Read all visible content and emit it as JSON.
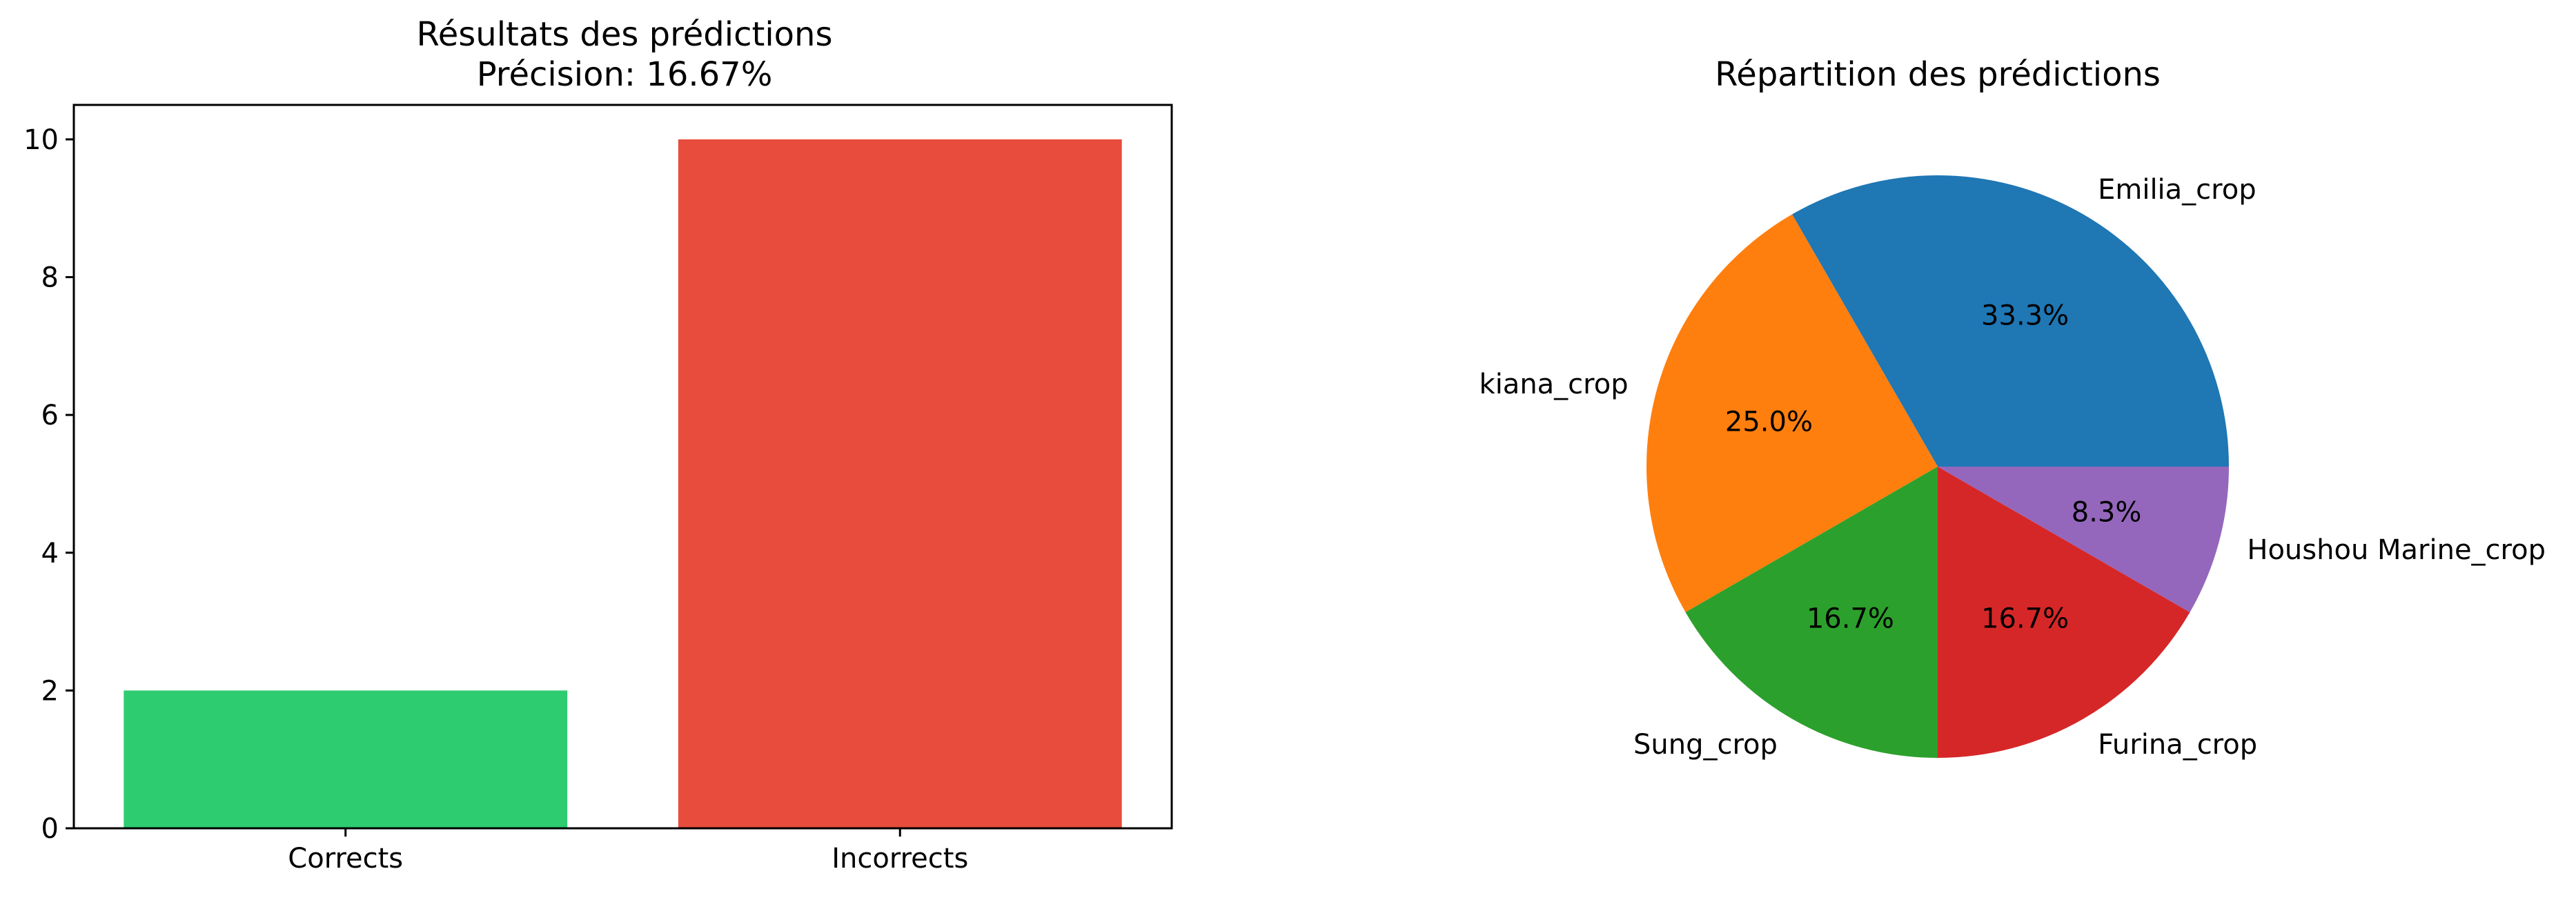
{
  "chart_data": [
    {
      "type": "bar",
      "title": "Résultats des prédictions",
      "subtitle": "Précision: 16.67%",
      "categories": [
        "Corrects",
        "Incorrects"
      ],
      "values": [
        2,
        10
      ],
      "colors": [
        "#2ecc71",
        "#e74c3c"
      ],
      "ylim": [
        0,
        10.5
      ],
      "yticks": [
        0,
        2,
        4,
        6,
        8,
        10
      ],
      "grid": false
    },
    {
      "type": "pie",
      "title": "Répartition des prédictions",
      "labels": [
        "Emilia_crop",
        "kiana_crop",
        "Sung_crop",
        "Furina_crop",
        "Houshou Marine_crop"
      ],
      "values": [
        4,
        3,
        2,
        2,
        1
      ],
      "percent_labels": [
        "33.3%",
        "25.0%",
        "16.7%",
        "16.7%",
        "8.3%"
      ],
      "colors": [
        "#1f77b4",
        "#ff7f0e",
        "#2ca02c",
        "#d62728",
        "#9467bd"
      ],
      "start_angle_deg": 0,
      "direction": "counterclockwise"
    }
  ]
}
